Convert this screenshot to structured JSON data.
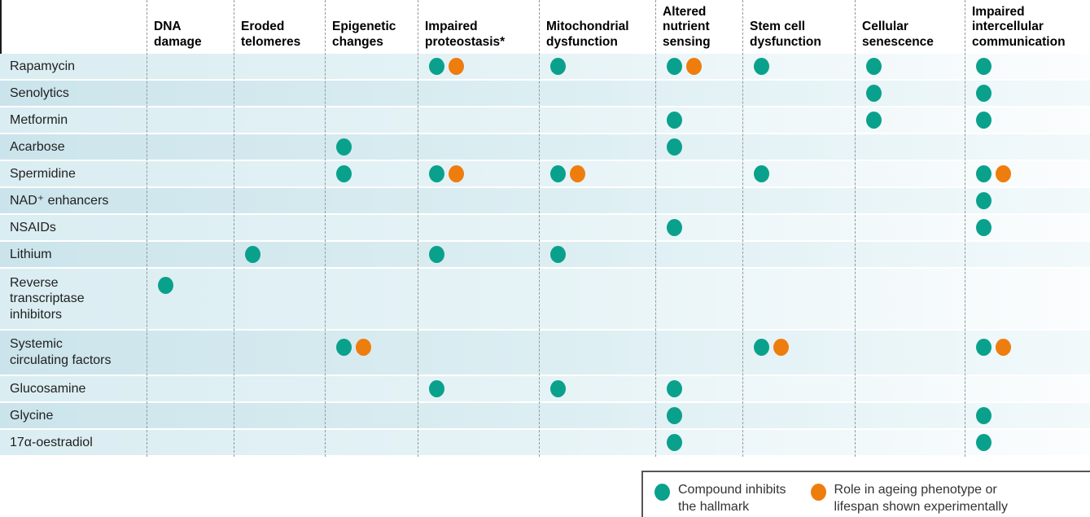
{
  "colors": {
    "inhibits": "#0aa18c",
    "experimental": "#ee7d0e",
    "row_light_left": "#daedf2",
    "row_dark_left": "#cbe4eb",
    "separator": "#8f999e",
    "left_rule": "#1a1a1a"
  },
  "chart_data": {
    "type": "table",
    "title": "",
    "description": "Matrix of compounds (rows) versus hallmarks of ageing (columns); teal dot = compound inhibits the hallmark, orange dot = role in ageing phenotype or lifespan shown experimentally",
    "cell_codes": {
      "": "no mark",
      "T": "compound inhibits the hallmark",
      "TO": "compound inhibits the hallmark + role in ageing phenotype or lifespan shown experimentally"
    },
    "columns": [
      {
        "id": "dna-damage",
        "label": "DNA\ndamage"
      },
      {
        "id": "eroded-telomeres",
        "label": "Eroded\ntelomeres"
      },
      {
        "id": "epigenetic-changes",
        "label": "Epigenetic\nchanges"
      },
      {
        "id": "impaired-proteostasis",
        "label": "Impaired\nproteostasis*"
      },
      {
        "id": "mitochondrial-dysfunction",
        "label": "Mitochondrial\ndysfunction"
      },
      {
        "id": "altered-nutrient-sensing",
        "label": "Altered\nnutrient\nsensing"
      },
      {
        "id": "stem-cell-dysfunction",
        "label": "Stem cell\ndysfunction"
      },
      {
        "id": "cellular-senescence",
        "label": "Cellular\nsenescence"
      },
      {
        "id": "impaired-intercellular-communication",
        "label": "Impaired\nintercellular\ncommunication"
      }
    ],
    "rows": [
      {
        "id": "rapamycin",
        "label": "Rapamycin",
        "cells": [
          "",
          "",
          "",
          "TO",
          "T",
          "TO",
          "T",
          "T",
          "T"
        ]
      },
      {
        "id": "senolytics",
        "label": "Senolytics",
        "cells": [
          "",
          "",
          "",
          "",
          "",
          "",
          "",
          "T",
          "T"
        ]
      },
      {
        "id": "metformin",
        "label": "Metformin",
        "cells": [
          "",
          "",
          "",
          "",
          "",
          "T",
          "",
          "T",
          "T"
        ]
      },
      {
        "id": "acarbose",
        "label": "Acarbose",
        "cells": [
          "",
          "",
          "T",
          "",
          "",
          "T",
          "",
          "",
          ""
        ]
      },
      {
        "id": "spermidine",
        "label": "Spermidine",
        "cells": [
          "",
          "",
          "T",
          "TO",
          "TO",
          "",
          "T",
          "",
          "TO"
        ]
      },
      {
        "id": "nad-enhancers",
        "label": "NAD⁺ enhancers",
        "cells": [
          "",
          "",
          "",
          "",
          "",
          "",
          "",
          "",
          "T"
        ]
      },
      {
        "id": "nsaids",
        "label": "NSAIDs",
        "cells": [
          "",
          "",
          "",
          "",
          "",
          "T",
          "",
          "",
          "T"
        ]
      },
      {
        "id": "lithium",
        "label": "Lithium",
        "cells": [
          "",
          "T",
          "",
          "T",
          "T",
          "",
          "",
          "",
          ""
        ]
      },
      {
        "id": "reverse-transcriptase-inhibitors",
        "label": "Reverse\ntranscriptase\ninhibitors",
        "cells": [
          "T",
          "",
          "",
          "",
          "",
          "",
          "",
          "",
          ""
        ]
      },
      {
        "id": "systemic-circulating-factors",
        "label": "Systemic\ncirculating factors",
        "cells": [
          "",
          "",
          "TO",
          "",
          "",
          "",
          "TO",
          "",
          "TO"
        ]
      },
      {
        "id": "glucosamine",
        "label": "Glucosamine",
        "cells": [
          "",
          "",
          "",
          "T",
          "T",
          "T",
          "",
          "",
          ""
        ]
      },
      {
        "id": "glycine",
        "label": "Glycine",
        "cells": [
          "",
          "",
          "",
          "",
          "",
          "T",
          "",
          "",
          "T"
        ]
      },
      {
        "id": "17a-oestradiol",
        "label": "17α-oestradiol",
        "cells": [
          "",
          "",
          "",
          "",
          "",
          "T",
          "",
          "",
          "T"
        ]
      }
    ],
    "legend": {
      "items": [
        {
          "icon": "teal-dot",
          "color_key": "inhibits",
          "text": "Compound inhibits\nthe hallmark"
        },
        {
          "icon": "orange-dot",
          "color_key": "experimental",
          "text": "Role in ageing phenotype or\nlifespan shown experimentally"
        }
      ]
    }
  }
}
